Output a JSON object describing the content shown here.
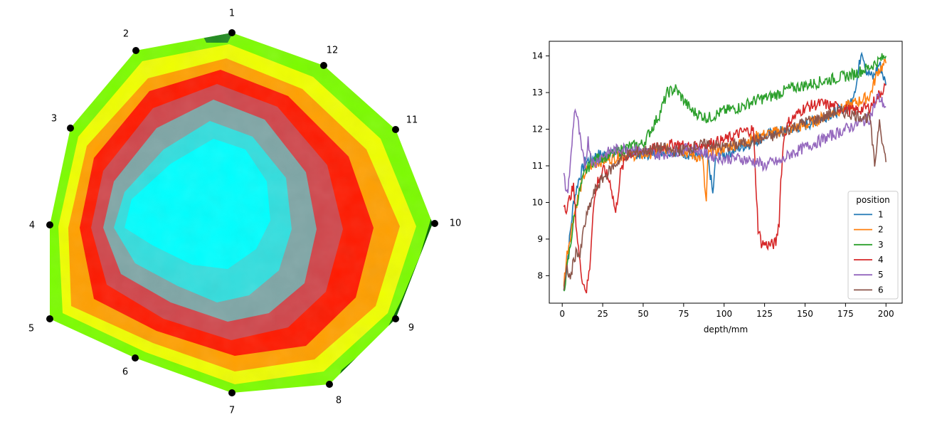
{
  "chart_data": [
    {
      "type": "heatmap",
      "title": "",
      "description_shape": "octagonal cross-section heat map with position markers",
      "markers": [
        {
          "label": "1"
        },
        {
          "label": "2"
        },
        {
          "label": "3"
        },
        {
          "label": "4"
        },
        {
          "label": "5"
        },
        {
          "label": "6"
        },
        {
          "label": "7"
        },
        {
          "label": "8"
        },
        {
          "label": "9"
        },
        {
          "label": "10"
        },
        {
          "label": "11"
        },
        {
          "label": "12"
        }
      ],
      "colormap": [
        "#006400",
        "#7cfc00",
        "#ffff00",
        "#ff8c00",
        "#ff0000",
        "#cd5c5c",
        "#00ffff"
      ]
    },
    {
      "type": "line",
      "title": "",
      "xlabel": "depth/mm",
      "ylabel": "",
      "xlim": [
        -8,
        210
      ],
      "ylim": [
        7.25,
        14.4
      ],
      "x_ticks": [
        0,
        25,
        50,
        75,
        100,
        125,
        150,
        175,
        200
      ],
      "y_ticks": [
        8,
        9,
        10,
        11,
        12,
        13,
        14
      ],
      "legend": {
        "title": "position",
        "placement": "lower right"
      },
      "grid": false,
      "series": [
        {
          "name": "1",
          "color": "#1f77b4",
          "x": [
            1,
            3,
            5,
            7,
            10,
            14,
            18,
            22,
            30,
            40,
            50,
            60,
            70,
            80,
            90,
            92,
            93,
            95,
            100,
            110,
            120,
            130,
            140,
            150,
            160,
            170,
            178,
            182,
            185,
            188,
            192,
            196,
            200
          ],
          "y": [
            7.6,
            8.3,
            9.2,
            10.0,
            10.6,
            11.1,
            11.2,
            11.3,
            11.3,
            11.4,
            11.3,
            11.4,
            11.4,
            11.3,
            11.2,
            10.6,
            10.2,
            11.3,
            11.3,
            11.5,
            11.7,
            11.9,
            12.0,
            12.1,
            12.3,
            12.5,
            12.7,
            13.3,
            14.2,
            13.6,
            13.4,
            13.8,
            13.2
          ]
        },
        {
          "name": "2",
          "color": "#ff7f0e",
          "x": [
            1,
            3,
            5,
            7,
            10,
            14,
            18,
            22,
            30,
            40,
            50,
            60,
            70,
            80,
            87,
            88,
            89,
            90,
            95,
            100,
            110,
            120,
            130,
            140,
            150,
            160,
            170,
            180,
            190,
            195,
            200
          ],
          "y": [
            7.8,
            8.6,
            9.1,
            9.6,
            10.2,
            10.8,
            11.0,
            11.1,
            11.2,
            11.3,
            11.3,
            11.4,
            11.5,
            11.3,
            11.2,
            10.4,
            9.9,
            11.3,
            11.4,
            11.5,
            11.6,
            11.8,
            11.9,
            12.0,
            12.1,
            12.3,
            12.5,
            12.7,
            12.9,
            13.6,
            13.8
          ]
        },
        {
          "name": "3",
          "color": "#2ca02c",
          "x": [
            1,
            3,
            5,
            7,
            10,
            14,
            18,
            22,
            30,
            40,
            50,
            60,
            65,
            70,
            75,
            80,
            90,
            100,
            110,
            120,
            130,
            140,
            150,
            160,
            170,
            180,
            190,
            200
          ],
          "y": [
            7.6,
            8.2,
            8.8,
            9.5,
            10.2,
            10.8,
            11.1,
            11.2,
            11.3,
            11.5,
            11.6,
            12.4,
            13.0,
            13.1,
            12.8,
            12.5,
            12.3,
            12.5,
            12.6,
            12.8,
            12.9,
            13.1,
            13.2,
            13.3,
            13.4,
            13.5,
            13.7,
            14.0
          ]
        },
        {
          "name": "4",
          "color": "#d62728",
          "x": [
            1,
            3,
            5,
            7,
            9,
            11,
            13,
            15,
            17,
            19,
            22,
            26,
            30,
            33,
            36,
            40,
            50,
            60,
            70,
            80,
            90,
            100,
            110,
            118,
            120,
            121,
            123,
            126,
            130,
            132,
            134,
            135,
            137,
            140,
            150,
            160,
            170,
            180,
            190,
            200
          ],
          "y": [
            10.0,
            9.8,
            10.2,
            10.4,
            9.2,
            8.3,
            7.8,
            7.6,
            8.2,
            9.8,
            10.6,
            10.9,
            10.5,
            9.7,
            10.8,
            11.3,
            11.4,
            11.5,
            11.6,
            11.5,
            11.6,
            11.7,
            11.9,
            12.0,
            10.2,
            9.3,
            8.9,
            8.85,
            8.85,
            8.9,
            9.5,
            10.6,
            11.8,
            12.2,
            12.6,
            12.7,
            12.6,
            12.5,
            12.6,
            13.2
          ]
        },
        {
          "name": "5",
          "color": "#9467bd",
          "x": [
            1,
            3,
            5,
            7,
            8,
            10,
            12,
            14,
            16,
            18,
            20,
            22,
            26,
            30,
            40,
            50,
            60,
            70,
            80,
            90,
            100,
            110,
            120,
            125,
            130,
            135,
            140,
            150,
            160,
            170,
            180,
            190,
            195,
            200
          ],
          "y": [
            10.7,
            10.2,
            11.0,
            12.2,
            12.6,
            12.1,
            11.4,
            11.0,
            11.7,
            11.2,
            11.0,
            11.2,
            11.3,
            11.4,
            11.5,
            11.4,
            11.3,
            11.4,
            11.5,
            11.3,
            11.2,
            11.2,
            11.1,
            11.0,
            11.1,
            11.1,
            11.3,
            11.5,
            11.7,
            11.9,
            12.1,
            12.3,
            12.9,
            12.6
          ]
        },
        {
          "name": "6",
          "color": "#8c564b",
          "x": [
            1,
            3,
            5,
            7,
            9,
            11,
            13,
            15,
            17,
            20,
            24,
            28,
            32,
            36,
            40,
            50,
            60,
            70,
            80,
            90,
            100,
            110,
            120,
            130,
            140,
            150,
            160,
            170,
            180,
            190,
            193,
            196,
            198,
            200
          ],
          "y": [
            7.6,
            8.2,
            7.9,
            8.4,
            8.7,
            8.5,
            9.2,
            9.6,
            9.9,
            10.3,
            10.6,
            10.8,
            11.0,
            11.2,
            11.3,
            11.4,
            11.5,
            11.4,
            11.5,
            11.6,
            11.5,
            11.6,
            11.7,
            11.8,
            12.0,
            12.2,
            12.3,
            12.5,
            12.4,
            12.3,
            11.0,
            12.3,
            11.6,
            11.1
          ]
        }
      ]
    }
  ]
}
